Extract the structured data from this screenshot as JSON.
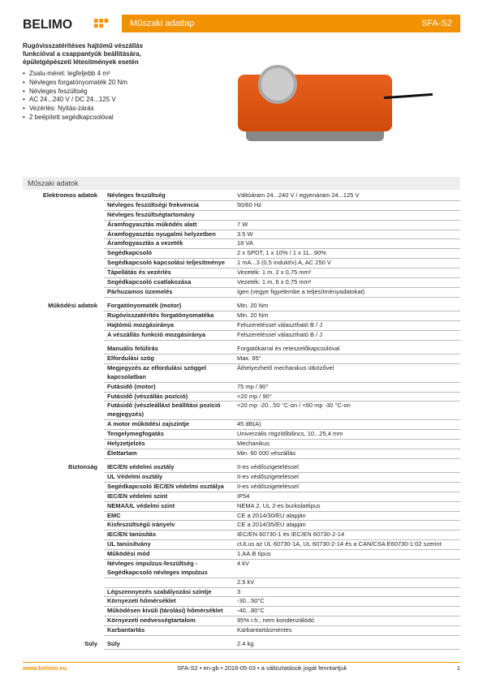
{
  "logo_text": "BELIMO",
  "title_bar": {
    "left": "Műszaki adatlap",
    "right": "SFA-S2"
  },
  "intro_title": "Rugóvisszatérítéses hajtómű vészállás funkcióval a csappantyúk beállítására, épületgépészeti létesítmények esetén",
  "intro_items": [
    "Zsalu-méret: legfeljebb 4 m²",
    "Névleges forgatónyomaték 20 Nm",
    "Névleges feszültség",
    "AC 24...240 V / DC 24...125 V",
    "Vezérlés: Nyitás-zárás",
    "2 beépített segédkapcsolóval"
  ],
  "section_title": "Műszaki adatok",
  "groups": [
    {
      "name": "Elektromos adatok",
      "rows": [
        {
          "l": "Névleges feszültség",
          "v": "Váltóáram 24...240 V / egyenáram 24...125 V"
        },
        {
          "l": "Névleges feszültségi frekvencia",
          "v": "50/60 Hz"
        },
        {
          "l": "Névleges feszültségtartomány",
          "v": ""
        },
        {
          "l": "Áramfogyasztás működés alatt",
          "v": "7 W"
        },
        {
          "l": "Áramfogyasztás nyugalmi helyzetben",
          "v": "3.5 W"
        },
        {
          "l": "Áramfogyasztás a vezeték",
          "v": "18 VA"
        },
        {
          "l": "Segédkapcsoló",
          "v": "2 x SPDT, 1 x 10% / 1 x 11...90%"
        },
        {
          "l": "Segédkapcsoló kapcsolási teljesítménye",
          "v": "1 mA...3 (0,5 induktív) A, AC 250 V"
        },
        {
          "l": "Tápellátás és vezérlés",
          "v": "Vezeték: 1 m, 2 x 0,75 mm²"
        },
        {
          "l": "Segédkapcsoló csatlakozása",
          "v": "Vezeték: 1 m, 6 x 0,75 mm²"
        },
        {
          "l": "Párhuzamos üzemelés",
          "v": "Igen (vegye figyelembe a teljesítményadatokat)"
        }
      ]
    },
    {
      "name": "Működési adatok",
      "rows": [
        {
          "l": "Forgatónyomaték (motor)",
          "v": "Min. 20 Nm"
        },
        {
          "l": "Rugóvisszatérítés forgatónyomatéka",
          "v": "Min. 20 Nm"
        },
        {
          "l": "Hajtómű mozgásiránya",
          "v": "Felszereléssel választható B / J"
        },
        {
          "l": "A vészállás funkció mozgásiránya",
          "v": "Felszereléssel választható B / J"
        }
      ]
    },
    {
      "name": "",
      "rows": [
        {
          "l": "Manuális felülírás",
          "v": "Forgatókarral és reteszelőkapcsolóval"
        },
        {
          "l": "Elfordulási szög",
          "v": "Max. 95°"
        },
        {
          "l": "Megjegyzés az elfordulási szöggel kapcsolatban",
          "v": "Áthelyezhető mechanikus ütközővel"
        },
        {
          "l": "Futásidő (motor)",
          "v": "75 mp / 90°"
        },
        {
          "l": "Futásidő (vészállás pozíció)",
          "v": "<20 mp / 90°"
        },
        {
          "l": "Futásidő (vészleállást beállítási pozíció megjegyzés)",
          "v": "<20 mp -20...50 °C-on / <60 mp -30 °C-on"
        },
        {
          "l": "A motor működési zajszintje",
          "v": "45 dB(A)"
        },
        {
          "l": "Tengelymegfogatás",
          "v": "Univerzális rögzítőbilincs, 10...25,4 mm"
        },
        {
          "l": "Helyzetjelzés",
          "v": "Mechanikus"
        },
        {
          "l": "Élettartam",
          "v": "Min. 60 000 vészállás"
        }
      ]
    },
    {
      "name": "Biztonság",
      "rows": [
        {
          "l": "IEC/EN védelmi osztály",
          "v": "II-es védőszigeteléssel"
        },
        {
          "l": "UL Védelmi osztály",
          "v": "II-es védőszigeteléssel"
        },
        {
          "l": "Segédkapcsoló IEC/EN védelmi osztálya",
          "v": "II-es védőszigeteléssel"
        },
        {
          "l": "IEC/EN védelmi szint",
          "v": "IP54"
        },
        {
          "l": "NEMA/UL védelmi szint",
          "v": "NEMA 2, UL 2-es burkolattípus"
        },
        {
          "l": "EMC",
          "v": "CE a 2014/30/EU alapján"
        },
        {
          "l": "Kisfeszültségű irányelv",
          "v": "CE a 2014/35/EU alapján"
        },
        {
          "l": "IEC/EN tanúsítás",
          "v": "IEC/EN 60730-1 és IEC/EN 60730-2-14"
        },
        {
          "l": "UL tanúsítvány",
          "v": "cULus az UL 60730-1A, UL 60730-2-14 és a CAN/CSA E60730-1:02 szerint"
        },
        {
          "l": "Működési mód",
          "v": "1.AA.B típus"
        },
        {
          "l": "Névleges impulzus-feszültség - Segédkapcsoló névleges impulzus",
          "v": "4 kV"
        },
        {
          "l": "",
          "v": "2.5 kV"
        },
        {
          "l": "Légszennyezés szabályozási szintje",
          "v": "3"
        },
        {
          "l": "Környezeti hőmérséklet",
          "v": "-30...50°C"
        },
        {
          "l": "Működésen kívüli (tárolási) hőmérséklet",
          "v": "-40...80°C"
        },
        {
          "l": "Környezeti nedvességtartalom",
          "v": "95% r.h., nem kondenzálódó"
        },
        {
          "l": "Karbantartás",
          "v": "Karbantartásmentes"
        }
      ]
    },
    {
      "name": "Súly",
      "rows": [
        {
          "l": "Súly",
          "v": "2.4 kg"
        }
      ]
    }
  ],
  "footer": {
    "site": "www.belimo.eu",
    "info": "SFA-S2 • en-gb • 2016-05-03 • a változtatások jogát fenntartjuk",
    "page": "1"
  },
  "colors": {
    "accent": "#f39200"
  }
}
